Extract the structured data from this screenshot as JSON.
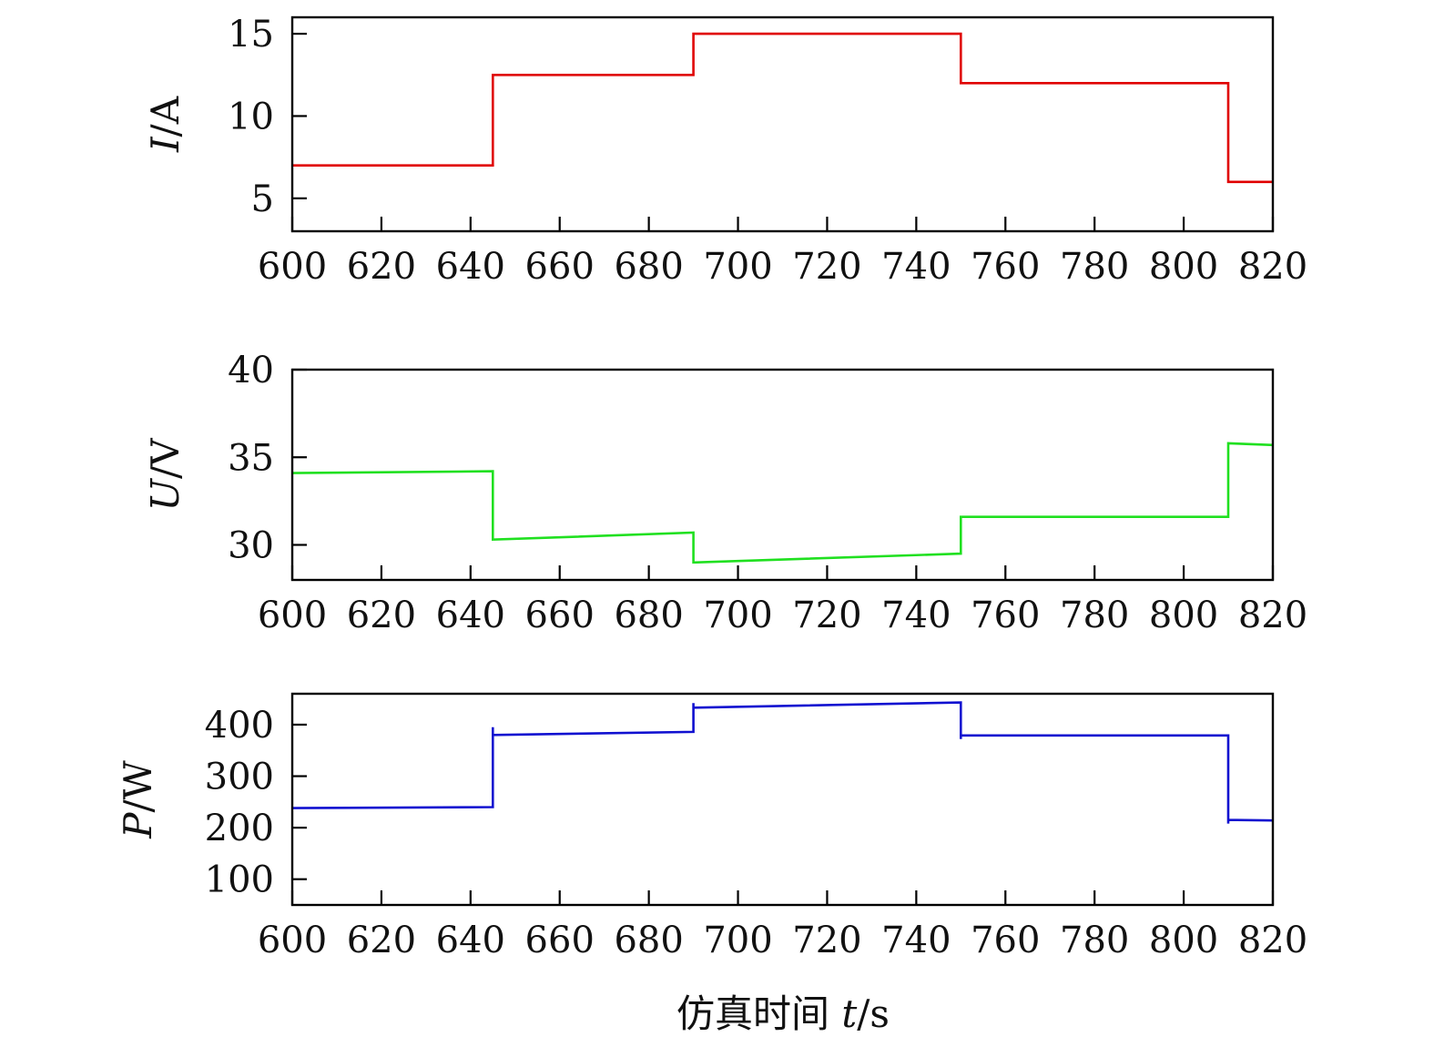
{
  "chart_data": [
    {
      "type": "line",
      "ylabel": "I/A",
      "ylabel_var": "I",
      "ylabel_unit": "/A",
      "xlim": [
        600,
        820
      ],
      "ylim": [
        3,
        16
      ],
      "xticks": [
        600,
        620,
        640,
        660,
        680,
        700,
        720,
        740,
        760,
        780,
        800,
        820
      ],
      "yticks": [
        5,
        10,
        15
      ],
      "grid": false,
      "series": [
        {
          "color": "#e00000",
          "x": [
            600,
            645,
            645,
            690,
            690,
            750,
            750,
            810,
            810,
            820
          ],
          "y": [
            7,
            7,
            12.5,
            12.5,
            15,
            15,
            12,
            12,
            6,
            6
          ]
        }
      ]
    },
    {
      "type": "line",
      "ylabel": "U/V",
      "ylabel_var": "U",
      "ylabel_unit": "/V",
      "xlim": [
        600,
        820
      ],
      "ylim": [
        28,
        40
      ],
      "xticks": [
        600,
        620,
        640,
        660,
        680,
        700,
        720,
        740,
        760,
        780,
        800,
        820
      ],
      "yticks": [
        30,
        35,
        40
      ],
      "grid": false,
      "series": [
        {
          "color": "#20e020",
          "x": [
            600,
            645,
            645,
            690,
            690,
            750,
            750,
            810,
            810,
            820
          ],
          "y": [
            34.1,
            34.2,
            30.3,
            30.7,
            29.0,
            29.5,
            31.6,
            31.6,
            35.8,
            35.7
          ]
        }
      ]
    },
    {
      "type": "line",
      "ylabel": "P/W",
      "ylabel_var": "P",
      "ylabel_unit": "/W",
      "xlim": [
        600,
        820
      ],
      "ylim": [
        50,
        460
      ],
      "xticks": [
        600,
        620,
        640,
        660,
        680,
        700,
        720,
        740,
        760,
        780,
        800,
        820
      ],
      "yticks": [
        100,
        200,
        300,
        400
      ],
      "grid": false,
      "series": [
        {
          "color": "#1010d0",
          "x": [
            600,
            645,
            645,
            645,
            690,
            690,
            690,
            750,
            750,
            750,
            810,
            810,
            810,
            820
          ],
          "y": [
            238,
            240,
            395,
            380,
            386,
            442,
            433,
            443,
            372,
            379,
            379,
            208,
            215,
            214
          ]
        }
      ]
    }
  ],
  "xlabel": {
    "prefix": "仿真时间 ",
    "var": "t",
    "unit": "/s"
  }
}
